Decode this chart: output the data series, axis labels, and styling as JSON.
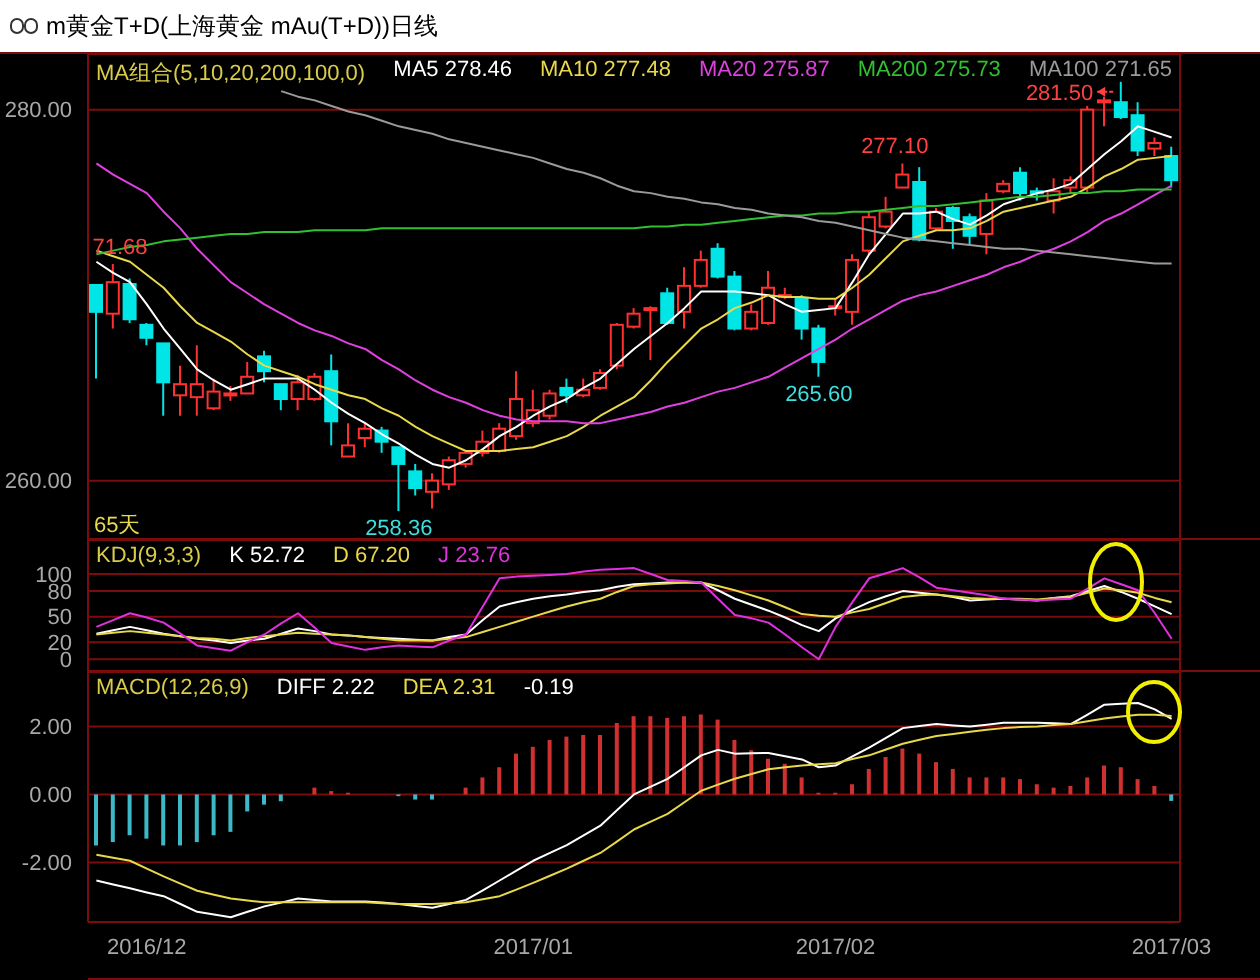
{
  "chart_data": [
    {
      "type": "candlestick",
      "title": "m黄金T+D(上海黄金 mAu(T+D))日线",
      "legend_title": "MA组合(5,10,20,200,100,0)",
      "legend": "top right",
      "grid": "y",
      "tick_labels": "y",
      "categories": [
        null,
        null,
        null,
        "2016/12",
        null,
        null,
        null,
        null,
        null,
        null,
        null,
        null,
        null,
        null,
        null,
        null,
        null,
        null,
        null,
        null,
        null,
        null,
        null,
        null,
        null,
        null,
        "2017/01",
        null,
        null,
        null,
        null,
        null,
        null,
        null,
        null,
        null,
        null,
        null,
        null,
        null,
        null,
        null,
        null,
        null,
        "2017/02",
        null,
        null,
        null,
        null,
        null,
        null,
        null,
        null,
        null,
        null,
        null,
        null,
        null,
        null,
        null,
        null,
        null,
        null,
        null,
        "2017/03"
      ],
      "ohlc": [
        [
          270.55,
          270.6,
          265.5,
          269.1
        ],
        [
          269.0,
          271.68,
          268.2,
          270.7
        ],
        [
          270.6,
          270.9,
          268.5,
          268.7
        ],
        [
          268.4,
          268.5,
          267.3,
          267.7
        ],
        [
          267.4,
          267.4,
          263.5,
          265.3
        ],
        [
          264.6,
          266.2,
          263.5,
          265.2
        ],
        [
          264.5,
          267.3,
          263.5,
          265.2
        ],
        [
          263.9,
          265.5,
          263.8,
          264.8
        ],
        [
          264.6,
          265.1,
          264.3,
          264.7
        ],
        [
          264.7,
          266.4,
          264.7,
          265.6
        ],
        [
          266.7,
          267.0,
          265.3,
          265.9
        ],
        [
          265.2,
          265.2,
          263.8,
          264.4
        ],
        [
          264.4,
          265.7,
          263.8,
          265.3
        ],
        [
          264.4,
          265.8,
          264.3,
          265.6
        ],
        [
          265.9,
          266.8,
          261.9,
          263.2
        ],
        [
          261.3,
          263.1,
          261.3,
          261.9
        ],
        [
          262.3,
          263.1,
          261.8,
          262.8
        ],
        [
          262.7,
          262.9,
          261.5,
          262.1
        ],
        [
          261.8,
          261.8,
          258.36,
          260.9
        ],
        [
          260.5,
          260.9,
          259.2,
          259.6
        ],
        [
          259.4,
          260.4,
          258.5,
          260.0
        ],
        [
          259.8,
          261.3,
          259.5,
          261.1
        ],
        [
          260.9,
          261.6,
          260.7,
          261.5
        ],
        [
          261.5,
          262.7,
          261.3,
          262.1
        ],
        [
          261.6,
          263.1,
          261.5,
          262.8
        ],
        [
          262.4,
          265.9,
          262.2,
          264.4
        ],
        [
          263.1,
          264.9,
          262.9,
          263.8
        ],
        [
          263.5,
          264.9,
          263.3,
          264.7
        ],
        [
          265.0,
          265.5,
          264.2,
          264.6
        ],
        [
          264.6,
          265.5,
          264.5,
          264.9
        ],
        [
          265.0,
          266.0,
          264.9,
          265.8
        ],
        [
          266.2,
          268.5,
          266.0,
          268.4
        ],
        [
          268.3,
          269.3,
          268.2,
          269.0
        ],
        [
          269.2,
          269.4,
          266.5,
          269.3
        ],
        [
          270.1,
          270.4,
          268.4,
          268.5
        ],
        [
          269.1,
          271.5,
          268.2,
          270.5
        ],
        [
          270.5,
          272.4,
          270.4,
          271.9
        ],
        [
          272.5,
          272.8,
          270.9,
          271.0
        ],
        [
          271.0,
          271.3,
          268.1,
          268.2
        ],
        [
          268.2,
          269.5,
          268.1,
          269.1
        ],
        [
          268.5,
          271.3,
          268.4,
          270.4
        ],
        [
          269.9,
          270.4,
          269.8,
          270.0
        ],
        [
          269.8,
          270.0,
          267.6,
          268.2
        ],
        [
          268.2,
          268.4,
          265.6,
          266.4
        ],
        [
          269.3,
          269.8,
          268.9,
          269.4
        ],
        [
          269.1,
          272.2,
          268.4,
          271.9
        ],
        [
          272.4,
          274.5,
          272.2,
          274.2
        ],
        [
          273.7,
          275.3,
          273.6,
          274.5
        ],
        [
          275.8,
          277.1,
          275.8,
          276.5
        ],
        [
          276.1,
          276.9,
          272.9,
          273.0
        ],
        [
          273.6,
          274.7,
          273.5,
          274.5
        ],
        [
          274.7,
          274.8,
          272.5,
          274.0
        ],
        [
          274.2,
          274.4,
          272.7,
          273.2
        ],
        [
          273.3,
          275.5,
          272.2,
          275.1
        ],
        [
          275.6,
          276.2,
          275.5,
          276.0
        ],
        [
          276.6,
          276.9,
          275.1,
          275.5
        ],
        [
          275.6,
          275.8,
          275.1,
          275.5
        ],
        [
          275.1,
          276.3,
          274.4,
          275.6
        ],
        [
          275.8,
          276.4,
          275.5,
          276.2
        ],
        [
          275.8,
          280.2,
          275.5,
          280.0
        ],
        [
          280.4,
          280.7,
          279.1,
          280.5
        ],
        [
          280.4,
          281.5,
          279.5,
          279.6
        ],
        [
          279.7,
          280.4,
          277.5,
          277.8
        ],
        [
          277.9,
          278.5,
          277.5,
          278.2
        ],
        [
          277.5,
          278.0,
          275.8,
          276.2
        ]
      ],
      "colors": [
        "#00e5e5",
        "#ff3030",
        "#00e5e5",
        "#00e5e5",
        "#00e5e5",
        "#ff3030",
        "#ff3030",
        "#ff3030",
        "#ff3030",
        "#ff3030",
        "#00e5e5",
        "#00e5e5",
        "#ff3030",
        "#ff3030",
        "#00e5e5",
        "#ff3030",
        "#ff3030",
        "#00e5e5",
        "#00e5e5",
        "#00e5e5",
        "#ff3030",
        "#ff3030",
        "#ff3030",
        "#ff3030",
        "#ff3030",
        "#ff3030",
        "#ff3030",
        "#ff3030",
        "#00e5e5",
        "#ff3030",
        "#ff3030",
        "#ff3030",
        "#ff3030",
        "#ff3030",
        "#00e5e5",
        "#ff3030",
        "#ff3030",
        "#00e5e5",
        "#00e5e5",
        "#ff3030",
        "#ff3030",
        "#ff3030",
        "#00e5e5",
        "#00e5e5",
        "#ff3030",
        "#ff3030",
        "#ff3030",
        "#ff3030",
        "#ff3030",
        "#00e5e5",
        "#ff3030",
        "#00e5e5",
        "#00e5e5",
        "#ff3030",
        "#ff3030",
        "#00e5e5",
        "#00e5e5",
        "#ff3030",
        "#ff3030",
        "#ff3030",
        "#ff3030",
        "#00e5e5",
        "#00e5e5",
        "#ff3030",
        "#00e5e5"
      ],
      "series": [
        {
          "type": "line",
          "name": "MA5 278.46",
          "color": "#ffffff",
          "values": [
            271.8,
            271.2,
            270.7,
            269.5,
            268.2,
            267.1,
            266.0,
            265.4,
            264.9,
            265.2,
            265.5,
            265.5,
            265.5,
            264.9,
            264.2,
            263.6,
            263.1,
            262.5,
            262.0,
            261.4,
            260.9,
            260.7,
            261.1,
            261.7,
            262.4,
            262.9,
            263.5,
            264.0,
            264.4,
            265.0,
            265.5,
            266.3,
            267.1,
            267.8,
            268.5,
            269.3,
            270.2,
            270.2,
            270.2,
            270.1,
            270.0,
            269.5,
            269.1,
            269.2,
            269.3,
            270.7,
            272.2,
            273.3,
            274.4,
            274.4,
            274.5,
            274.1,
            273.8,
            274.3,
            274.9,
            275.2,
            275.5,
            275.7,
            276.0,
            276.8,
            277.6,
            278.3,
            279.1,
            278.8,
            278.5
          ]
        },
        {
          "type": "line",
          "name": "MA10 277.48",
          "color": "#e8d84a",
          "values": [
            272.4,
            272.1,
            271.8,
            271.1,
            270.4,
            269.4,
            268.5,
            268.0,
            267.5,
            266.8,
            266.2,
            265.9,
            265.6,
            265.2,
            264.9,
            264.6,
            264.4,
            263.9,
            263.5,
            262.9,
            262.4,
            262.0,
            261.6,
            261.6,
            261.6,
            261.7,
            261.8,
            262.1,
            262.4,
            262.9,
            263.5,
            264.0,
            264.5,
            265.4,
            266.4,
            267.3,
            268.2,
            268.7,
            269.3,
            269.6,
            270.0,
            269.9,
            269.9,
            269.8,
            269.8,
            270.4,
            271.1,
            272.0,
            272.9,
            273.2,
            273.5,
            273.5,
            273.6,
            274.0,
            274.5,
            274.7,
            274.9,
            275.1,
            275.3,
            275.8,
            276.4,
            276.8,
            277.3,
            277.4,
            277.5
          ]
        },
        {
          "type": "line",
          "name": "MA20 275.87",
          "color": "#e040e0",
          "values": [
            277.1,
            276.5,
            276.0,
            275.5,
            274.5,
            273.6,
            272.5,
            271.6,
            270.7,
            270.1,
            269.5,
            269.0,
            268.5,
            268.1,
            267.8,
            267.4,
            267.1,
            266.5,
            266.0,
            265.4,
            264.9,
            264.5,
            264.2,
            263.8,
            263.5,
            263.3,
            263.2,
            263.2,
            263.2,
            263.1,
            263.1,
            263.3,
            263.5,
            263.7,
            264.0,
            264.2,
            264.5,
            264.8,
            265.0,
            265.3,
            265.6,
            266.1,
            266.6,
            267.1,
            267.6,
            268.2,
            268.7,
            269.2,
            269.7,
            270.0,
            270.2,
            270.5,
            270.8,
            271.1,
            271.5,
            271.8,
            272.2,
            272.5,
            272.9,
            273.4,
            274.0,
            274.4,
            274.9,
            275.4,
            275.9
          ]
        },
        {
          "type": "line",
          "name": "MA200 275.73",
          "color": "#30c030",
          "values": [
            272.2,
            272.4,
            272.6,
            272.7,
            272.9,
            273.0,
            273.1,
            273.2,
            273.3,
            273.3,
            273.4,
            273.4,
            273.4,
            273.5,
            273.5,
            273.5,
            273.5,
            273.6,
            273.6,
            273.6,
            273.6,
            273.6,
            273.6,
            273.6,
            273.6,
            273.6,
            273.6,
            273.6,
            273.6,
            273.6,
            273.6,
            273.6,
            273.6,
            273.7,
            273.7,
            273.8,
            273.8,
            273.9,
            274.0,
            274.1,
            274.2,
            274.3,
            274.3,
            274.4,
            274.4,
            274.5,
            274.5,
            274.6,
            274.7,
            274.8,
            274.8,
            274.9,
            275.0,
            275.1,
            275.2,
            275.3,
            275.3,
            275.4,
            275.5,
            275.5,
            275.6,
            275.6,
            275.7,
            275.7,
            275.7
          ]
        },
        {
          "type": "line",
          "name": "MA100 271.65",
          "color": "#9a9a9a",
          "values": [
            null,
            null,
            null,
            null,
            null,
            null,
            null,
            null,
            null,
            null,
            null,
            281.0,
            280.7,
            280.5,
            280.2,
            279.9,
            279.7,
            279.4,
            279.1,
            278.9,
            278.7,
            278.4,
            278.2,
            278.0,
            277.8,
            277.6,
            277.4,
            277.1,
            276.8,
            276.6,
            276.3,
            275.9,
            275.6,
            275.5,
            275.3,
            275.2,
            275.0,
            274.9,
            274.7,
            274.6,
            274.4,
            274.3,
            274.2,
            274.0,
            273.9,
            273.7,
            273.5,
            273.3,
            273.1,
            273.0,
            272.9,
            272.8,
            272.7,
            272.6,
            272.5,
            272.5,
            272.4,
            272.3,
            272.2,
            272.1,
            272.0,
            271.9,
            271.8,
            271.7,
            271.7
          ]
        }
      ],
      "ylim": [
        256.8,
        283.0
      ],
      "yticks": [
        {
          "value": 260,
          "label": "260.00"
        },
        {
          "value": 280,
          "label": "280.00"
        }
      ],
      "annotations": [
        {
          "text": "71.68",
          "y": 271.68
        },
        {
          "text": "258.36",
          "y": 258.36
        },
        {
          "text": "265.60",
          "y": 265.6
        },
        {
          "text": "277.10",
          "y": 277.1
        },
        "281.50",
        "65天"
      ]
    },
    {
      "type": "line",
      "legend_title": "KDJ(9,3,3)",
      "legend": "top left",
      "grid": "y",
      "tick_labels": "y",
      "categories": [
        null,
        null,
        null,
        "2016/12",
        null,
        null,
        null,
        null,
        null,
        null,
        null,
        null,
        null,
        null,
        null,
        null,
        null,
        null,
        null,
        null,
        null,
        null,
        null,
        null,
        null,
        null,
        "2017/01",
        null,
        null,
        null,
        null,
        null,
        null,
        null,
        null,
        null,
        null,
        null,
        null,
        null,
        null,
        null,
        null,
        null,
        "2017/02",
        null,
        null,
        null,
        null,
        null,
        null,
        null,
        null,
        null,
        null,
        null,
        null,
        null,
        null,
        null,
        null,
        null,
        null,
        null,
        "2017/03"
      ],
      "series": [
        {
          "name": "K 52.72",
          "color": "#ffffff",
          "values": [
            30,
            34,
            38,
            34,
            30,
            27,
            24,
            22,
            19,
            22,
            24,
            30,
            36,
            33,
            29,
            28,
            26,
            25,
            24,
            23,
            22,
            26,
            29,
            46,
            62,
            67,
            71,
            74,
            76,
            79,
            81,
            85,
            88,
            89,
            90,
            90,
            90,
            81,
            71,
            64,
            57,
            49,
            40,
            33,
            48,
            58,
            67,
            74,
            80,
            78,
            76,
            73,
            69,
            70,
            71,
            70,
            69,
            72,
            74,
            80,
            86,
            79,
            71,
            62,
            53
          ]
        },
        {
          "name": "D 67.20",
          "color": "#e8d84a",
          "values": [
            29,
            31,
            33,
            31,
            29,
            27,
            25,
            24,
            22,
            25,
            27,
            29,
            31,
            30,
            29,
            28,
            26,
            24,
            22,
            22,
            22,
            24,
            26,
            32,
            38,
            44,
            50,
            56,
            62,
            67,
            71,
            79,
            86,
            88,
            89,
            90,
            90,
            86,
            81,
            75,
            69,
            61,
            53,
            51,
            50,
            55,
            59,
            66,
            73,
            75,
            76,
            74,
            72,
            71,
            71,
            71,
            70,
            72,
            73,
            78,
            83,
            81,
            78,
            72,
            67
          ]
        },
        {
          "name": "J 23.76",
          "color": "#e030e0",
          "values": [
            38,
            46,
            54,
            49,
            43,
            30,
            16,
            13,
            10,
            20,
            29,
            42,
            54,
            37,
            19,
            15,
            11,
            14,
            16,
            15,
            14,
            22,
            29,
            62,
            95,
            97,
            98,
            99,
            100,
            103,
            105,
            106,
            107,
            100,
            93,
            92,
            90,
            71,
            52,
            48,
            43,
            29,
            14,
            0,
            38,
            67,
            95,
            101,
            107,
            96,
            84,
            81,
            78,
            75,
            71,
            70,
            69,
            70,
            71,
            83,
            95,
            88,
            81,
            54,
            24
          ]
        }
      ],
      "ylim": [
        -15,
        140
      ],
      "yticks": [
        0,
        20,
        50,
        80,
        100
      ]
    },
    {
      "type": "bar",
      "legend_title": "MACD(12,26,9)",
      "legend": "top left",
      "grid": "y",
      "categories": [
        null,
        null,
        null,
        "2016/12",
        null,
        null,
        null,
        null,
        null,
        null,
        null,
        null,
        null,
        null,
        null,
        null,
        null,
        null,
        null,
        null,
        null,
        null,
        null,
        null,
        null,
        null,
        "2017/01",
        null,
        null,
        null,
        null,
        null,
        null,
        null,
        null,
        null,
        null,
        null,
        null,
        null,
        null,
        null,
        null,
        null,
        "2017/02",
        null,
        null,
        null,
        null,
        null,
        null,
        null,
        null,
        null,
        null,
        null,
        null,
        null,
        null,
        null,
        null,
        null,
        null,
        null,
        "2017/03"
      ],
      "values": [
        -1.5,
        -1.4,
        -1.2,
        -1.3,
        -1.5,
        -1.5,
        -1.4,
        -1.2,
        -1.1,
        -0.5,
        -0.3,
        -0.2,
        0,
        0.2,
        0.1,
        0.05,
        0,
        0,
        -0.05,
        -0.15,
        -0.15,
        0,
        0.2,
        0.5,
        0.8,
        1.2,
        1.4,
        1.6,
        1.7,
        1.75,
        1.75,
        2.1,
        2.3,
        2.3,
        2.25,
        2.3,
        2.35,
        2.2,
        1.6,
        1.3,
        1.05,
        0.9,
        0.5,
        0.05,
        0.05,
        0.3,
        0.75,
        1.1,
        1.35,
        1.2,
        0.95,
        0.75,
        0.5,
        0.5,
        0.5,
        0.45,
        0.3,
        0.2,
        0.25,
        0.5,
        0.85,
        0.8,
        0.45,
        0.25,
        -0.19
      ],
      "colors": [
        "#3cb8c8",
        "#3cb8c8",
        "#3cb8c8",
        "#3cb8c8",
        "#3cb8c8",
        "#3cb8c8",
        "#3cb8c8",
        "#3cb8c8",
        "#3cb8c8",
        "#3cb8c8",
        "#3cb8c8",
        "#3cb8c8",
        "#d03030",
        "#d03030",
        "#d03030",
        "#d03030",
        "#d03030",
        "#d03030",
        "#3cb8c8",
        "#3cb8c8",
        "#3cb8c8",
        "#d03030",
        "#d03030",
        "#d03030",
        "#d03030",
        "#d03030",
        "#d03030",
        "#d03030",
        "#d03030",
        "#d03030",
        "#d03030",
        "#d03030",
        "#d03030",
        "#d03030",
        "#d03030",
        "#d03030",
        "#d03030",
        "#d03030",
        "#d03030",
        "#d03030",
        "#d03030",
        "#d03030",
        "#d03030",
        "#d03030",
        "#d03030",
        "#d03030",
        "#d03030",
        "#d03030",
        "#d03030",
        "#d03030",
        "#d03030",
        "#d03030",
        "#d03030",
        "#d03030",
        "#d03030",
        "#d03030",
        "#d03030",
        "#d03030",
        "#d03030",
        "#d03030",
        "#d03030",
        "#d03030",
        "#d03030",
        "#d03030",
        "#3cb8c8"
      ],
      "series": [
        {
          "type": "line",
          "name": "DIFF 2.22",
          "color": "#ffffff",
          "values": [
            -2.53,
            -2.65,
            -2.76,
            -2.88,
            -2.99,
            -3.22,
            -3.45,
            -3.53,
            -3.61,
            -3.45,
            -3.29,
            -3.18,
            -3.06,
            -3.1,
            -3.15,
            -3.15,
            -3.15,
            -3.18,
            -3.22,
            -3.28,
            -3.33,
            -3.22,
            -3.1,
            -2.82,
            -2.53,
            -2.24,
            -1.95,
            -1.72,
            -1.49,
            -1.2,
            -0.92,
            -0.46,
            0,
            0.23,
            0.46,
            0.8,
            1.15,
            1.31,
            1.2,
            1.21,
            1.22,
            1.12,
            1.03,
            0.8,
            0.85,
            1.12,
            1.38,
            1.66,
            1.95,
            2.01,
            2.07,
            2.03,
            2.0,
            2.05,
            2.11,
            2.11,
            2.11,
            2.09,
            2.07,
            2.35,
            2.64,
            2.67,
            2.69,
            2.5,
            2.22
          ]
        },
        {
          "type": "line",
          "name": "DEA 2.31",
          "color": "#e8d84a",
          "values": [
            -1.77,
            -1.86,
            -1.95,
            -2.18,
            -2.41,
            -2.62,
            -2.83,
            -2.95,
            -3.06,
            -3.12,
            -3.17,
            -3.17,
            -3.17,
            -3.17,
            -3.17,
            -3.17,
            -3.17,
            -3.2,
            -3.22,
            -3.22,
            -3.22,
            -3.2,
            -3.17,
            -3.08,
            -2.99,
            -2.8,
            -2.6,
            -2.39,
            -2.18,
            -1.95,
            -1.72,
            -1.38,
            -1.03,
            -0.8,
            -0.57,
            -0.23,
            0.11,
            0.29,
            0.46,
            0.6,
            0.74,
            0.8,
            0.85,
            0.89,
            0.92,
            1.04,
            1.15,
            1.32,
            1.49,
            1.61,
            1.72,
            1.78,
            1.84,
            1.9,
            1.95,
            1.98,
            2.0,
            2.04,
            2.07,
            2.15,
            2.23,
            2.29,
            2.34,
            2.34,
            2.31
          ]
        }
      ],
      "ylim": [
        -3.75,
        3.6
      ],
      "yticks": [
        {
          "value": -2,
          "label": "-2.00"
        },
        {
          "value": 0,
          "label": "0.00"
        },
        {
          "value": 2,
          "label": "2.00"
        }
      ],
      "annotations": [
        "-0.19"
      ]
    }
  ]
}
